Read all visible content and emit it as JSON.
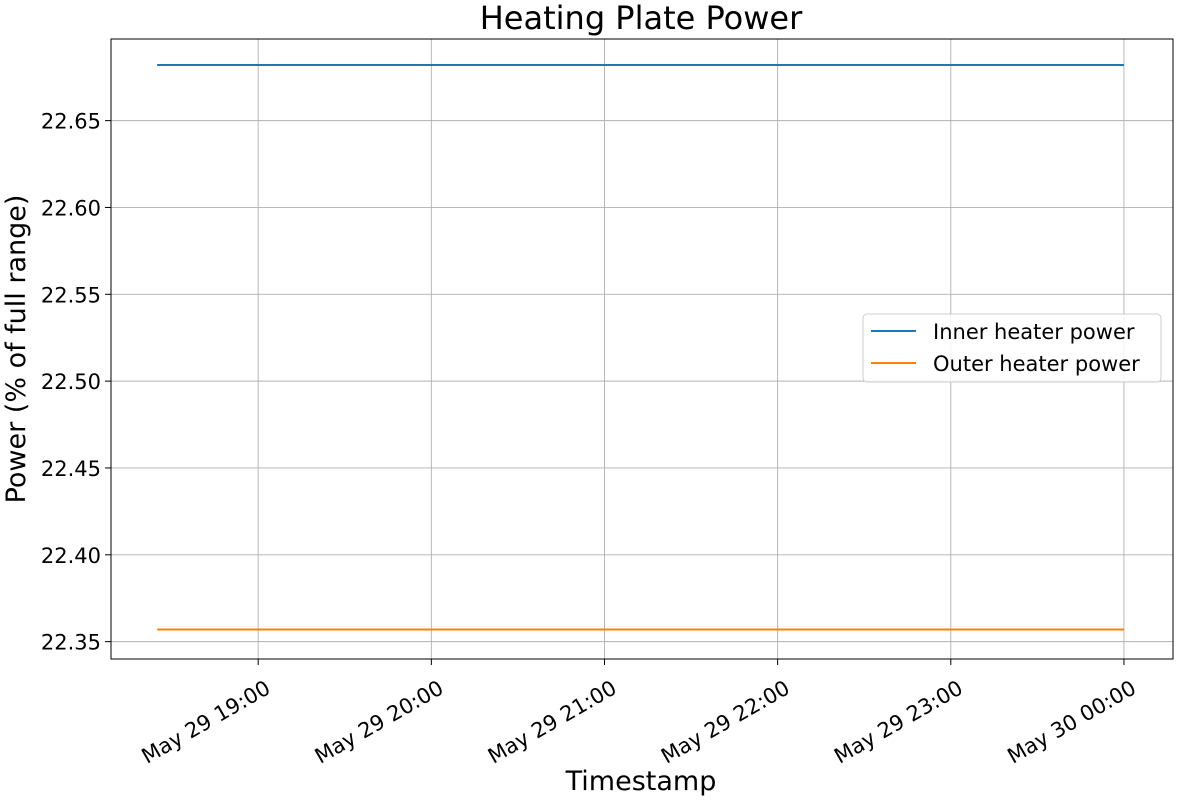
{
  "chart_data": {
    "type": "line",
    "title": "Heating Plate Power",
    "xlabel": "Timestamp",
    "ylabel": "Power (% of full range)",
    "x_range": [
      "2024-05-29T18:25",
      "2024-05-30T00:00"
    ],
    "xlim": [
      "2024-05-29T18:09",
      "2024-05-30T00:17"
    ],
    "ylim": [
      22.34,
      22.697
    ],
    "x_ticks": [
      {
        "x": "2024-05-29T19:00",
        "label": "May 29 19:00"
      },
      {
        "x": "2024-05-29T20:00",
        "label": "May 29 20:00"
      },
      {
        "x": "2024-05-29T21:00",
        "label": "May 29 21:00"
      },
      {
        "x": "2024-05-29T22:00",
        "label": "May 29 22:00"
      },
      {
        "x": "2024-05-29T23:00",
        "label": "May 29 23:00"
      },
      {
        "x": "2024-05-30T00:00",
        "label": "May 30 00:00"
      }
    ],
    "y_ticks": [
      22.35,
      22.4,
      22.45,
      22.5,
      22.55,
      22.6,
      22.65
    ],
    "grid": true,
    "legend_position": "center-right",
    "series": [
      {
        "name": "Inner heater power",
        "color": "#1f77b4",
        "y": 22.682
      },
      {
        "name": "Outer heater power",
        "color": "#ff7f0e",
        "y": 22.357
      }
    ]
  }
}
